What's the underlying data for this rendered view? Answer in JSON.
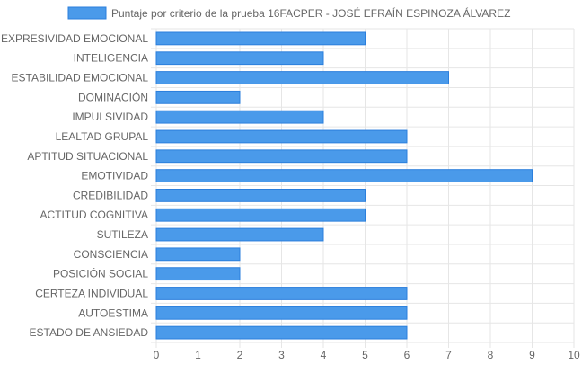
{
  "chart_data": {
    "type": "bar",
    "orientation": "horizontal",
    "categories": [
      "EXPRESIVIDAD EMOCIONAL",
      "INTELIGENCIA",
      "ESTABILIDAD EMOCIONAL",
      "DOMINACIÓN",
      "IMPULSIVIDAD",
      "LEALTAD GRUPAL",
      "APTITUD SITUACIONAL",
      "EMOTIVIDAD",
      "CREDIBILIDAD",
      "ACTITUD COGNITIVA",
      "SUTILEZA",
      "CONSCIENCIA",
      "POSICIÓN SOCIAL",
      "CERTEZA INDIVIDUAL",
      "AUTOESTIMA",
      "ESTADO DE ANSIEDAD"
    ],
    "series": [
      {
        "name": "Puntaje por criterio de la prueba 16FACPER - JOSÉ EFRAÍN ESPINOZA ÁLVAREZ",
        "values": [
          5,
          4,
          7,
          2,
          4,
          6,
          6,
          9,
          5,
          5,
          4,
          2,
          2,
          6,
          6,
          6
        ]
      }
    ],
    "xlim": [
      0,
      10
    ],
    "x_ticks": [
      "0",
      "1",
      "2",
      "3",
      "4",
      "5",
      "6",
      "7",
      "8",
      "9",
      "10"
    ],
    "grid": true,
    "legend_position": "top",
    "colors": {
      "bar_fill": "#4a9aea",
      "bar_stroke": "#2b7fdc",
      "grid": "#e6e6e6",
      "text": "#666666"
    }
  }
}
